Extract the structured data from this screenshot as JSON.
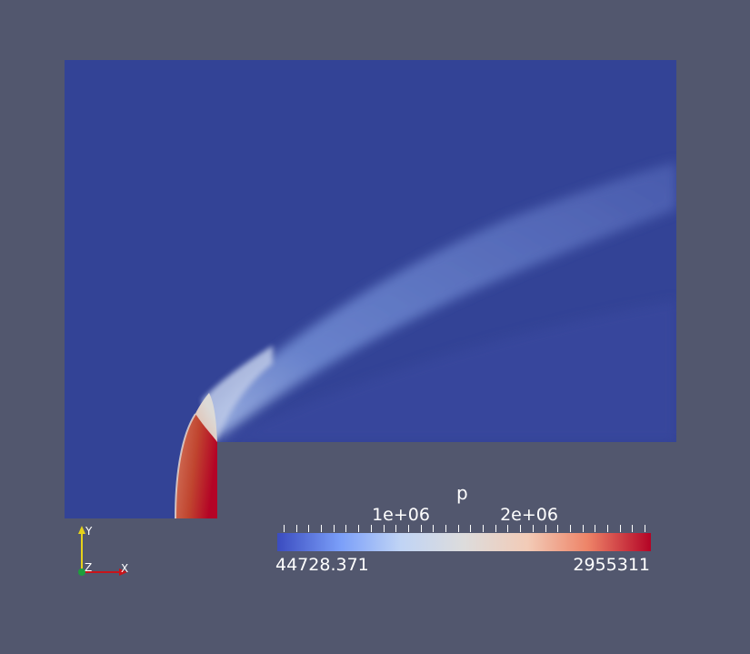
{
  "render_view": {
    "background_color": "#52576e",
    "field_low_color": "#3b4a9e",
    "field_high_color": "#b40426"
  },
  "scalar_bar": {
    "title": "p",
    "range_min": "44728.371",
    "range_max": "2955311",
    "tick_labels": [
      "1e+06",
      "2e+06"
    ],
    "colormap": "Cool to Warm",
    "colors": [
      "#3b4cc0",
      "#7b9ff9",
      "#c0d4f5",
      "#dddcdc",
      "#f2cbb7",
      "#ee8468",
      "#b40426"
    ]
  },
  "orientation_axes": {
    "x_label": "X",
    "y_label": "Y",
    "z_label": "Z",
    "x_color": "#c8141a",
    "y_color": "#e6d21a",
    "z_color": "#1e9e3c"
  }
}
